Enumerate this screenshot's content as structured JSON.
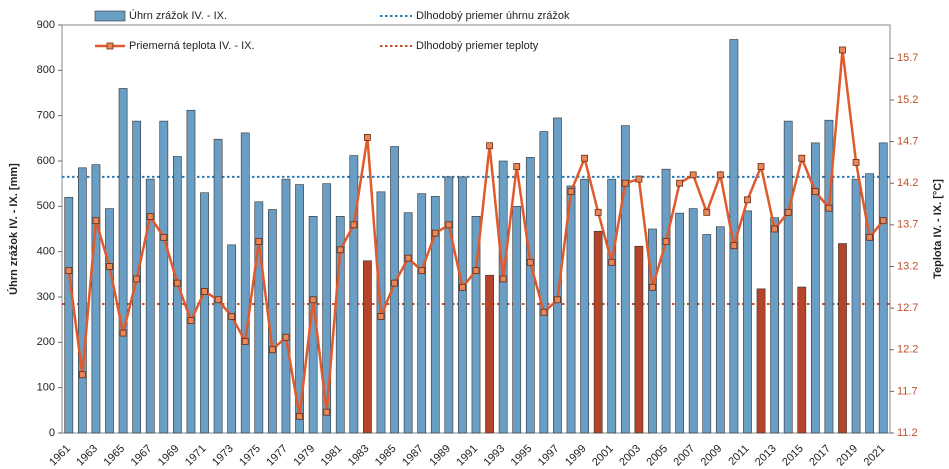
{
  "chart_data": {
    "type": "bar-line",
    "ylabel": "Úhrn zrážok IV. - IX. [mm]",
    "y2label": "Teplota IV. - IX. [°C]",
    "categories": [
      "1961",
      null,
      "1963",
      null,
      "1965",
      null,
      "1967",
      null,
      "1969",
      null,
      "1971",
      null,
      "1973",
      null,
      "1975",
      null,
      "1977",
      null,
      "1979",
      null,
      "1981",
      null,
      "1983",
      null,
      "1985",
      null,
      "1987",
      null,
      "1989",
      null,
      "1991",
      null,
      "1993",
      null,
      "1995",
      null,
      "1997",
      null,
      "1999",
      null,
      "2001",
      null,
      "2003",
      null,
      "2005",
      null,
      "2007",
      null,
      "2009",
      null,
      "2011",
      null,
      "2013",
      null,
      "2015",
      null,
      "2017",
      null,
      "2019",
      null,
      "2021"
    ],
    "series": [
      {
        "name": "Úhrn zrážok IV. - IX.",
        "type": "bar",
        "color": "#6a9ec4",
        "colors": [
          "#6a9ec4",
          "#6a9ec4",
          "#6a9ec4",
          "#6a9ec4",
          "#6a9ec4",
          "#6a9ec4",
          "#6a9ec4",
          "#6a9ec4",
          "#6a9ec4",
          "#6a9ec4",
          "#6a9ec4",
          "#6a9ec4",
          "#6a9ec4",
          "#6a9ec4",
          "#6a9ec4",
          "#6a9ec4",
          "#6a9ec4",
          "#6a9ec4",
          "#6a9ec4",
          "#6a9ec4",
          "#6a9ec4",
          "#6a9ec4",
          "#b5452a",
          "#6a9ec4",
          "#6a9ec4",
          "#6a9ec4",
          "#6a9ec4",
          "#6a9ec4",
          "#6a9ec4",
          "#6a9ec4",
          "#6a9ec4",
          "#b5452a",
          "#6a9ec4",
          "#6a9ec4",
          "#6a9ec4",
          "#6a9ec4",
          "#6a9ec4",
          "#6a9ec4",
          "#6a9ec4",
          "#b5452a",
          "#6a9ec4",
          "#6a9ec4",
          "#b5452a",
          "#6a9ec4",
          "#6a9ec4",
          "#6a9ec4",
          "#6a9ec4",
          "#6a9ec4",
          "#6a9ec4",
          "#6a9ec4",
          "#6a9ec4",
          "#b5452a",
          "#6a9ec4",
          "#6a9ec4",
          "#b5452a",
          "#6a9ec4",
          "#6a9ec4",
          "#b5452a",
          "#6a9ec4",
          "#6a9ec4",
          "#6a9ec4"
        ],
        "values": [
          520,
          585,
          592,
          495,
          760,
          688,
          560,
          688,
          610,
          712,
          530,
          648,
          415,
          662,
          510,
          493,
          560,
          548,
          478,
          550,
          478,
          612,
          380,
          532,
          632,
          486,
          528,
          522,
          565,
          565,
          478,
          348,
          600,
          500,
          608,
          665,
          695,
          545,
          560,
          445,
          560,
          678,
          412,
          450,
          582,
          485,
          495,
          438,
          455,
          868,
          490,
          318,
          475,
          688,
          322,
          640,
          690,
          418,
          560,
          572,
          640
        ]
      },
      {
        "name": "Priemerná teplota IV. - IX.",
        "type": "line",
        "axis": "y2",
        "color": "#e05a2b",
        "values": [
          13.15,
          11.9,
          13.75,
          13.2,
          12.4,
          13.05,
          13.8,
          13.55,
          13.0,
          12.55,
          12.9,
          12.8,
          12.6,
          12.3,
          13.5,
          12.2,
          12.35,
          11.4,
          12.8,
          11.45,
          13.4,
          13.7,
          14.75,
          12.6,
          13.0,
          13.3,
          13.15,
          13.6,
          13.7,
          12.95,
          13.15,
          14.65,
          13.05,
          14.4,
          13.25,
          12.65,
          12.8,
          14.1,
          14.5,
          13.85,
          13.25,
          14.2,
          14.25,
          12.95,
          13.5,
          14.2,
          14.3,
          13.85,
          14.3,
          13.45,
          14.0,
          14.4,
          13.65,
          13.85,
          14.5,
          14.1,
          13.9,
          15.8,
          14.45,
          13.55,
          13.75
        ]
      }
    ],
    "reference_lines": [
      {
        "name": "Dlhodobý priemer úhrnu zrážok",
        "value": 565,
        "color": "#2a7ab8"
      },
      {
        "name": "Dlhodobý priemer teploty",
        "value": 12.75,
        "axis": "y2",
        "color": "#c0502a"
      }
    ],
    "ylim": [
      0,
      900
    ],
    "yticks": [
      0,
      100,
      200,
      300,
      400,
      500,
      600,
      700,
      800,
      900
    ],
    "y2lim": [
      11.2,
      16.1
    ],
    "y2ticks": [
      11.2,
      11.7,
      12.2,
      12.7,
      13.2,
      13.7,
      14.2,
      14.7,
      15.2,
      15.7
    ],
    "grid": false
  }
}
